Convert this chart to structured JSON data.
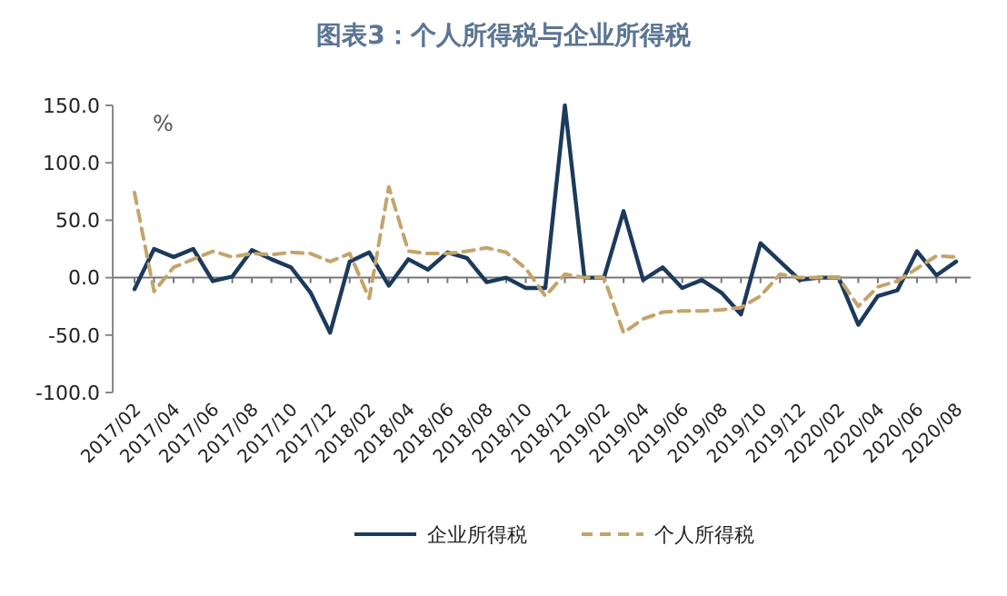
{
  "chart_data": {
    "type": "line",
    "title": "图表3：个人所得税与企业所得税",
    "ylabel": "%",
    "categories": [
      "2017/02",
      null,
      "2017/04",
      null,
      "2017/06",
      null,
      "2017/08",
      null,
      "2017/10",
      null,
      "2017/12",
      null,
      "2018/02",
      null,
      "2018/04",
      null,
      "2018/06",
      null,
      "2018/08",
      null,
      "2018/10",
      null,
      "2018/12",
      null,
      "2019/02",
      null,
      "2019/04",
      null,
      "2019/06",
      null,
      "2019/08",
      null,
      "2019/10",
      null,
      "2019/12",
      null,
      "2020/02",
      null,
      "2020/04",
      null,
      "2020/06",
      null,
      "2020/08"
    ],
    "series": [
      {
        "name": "企业所得税",
        "color": "#1b3a5c",
        "line_style": "solid",
        "values": [
          -10,
          25,
          18,
          25,
          -3,
          1,
          24,
          16,
          9,
          -13,
          -48,
          14,
          22,
          -7,
          16,
          7,
          22,
          17,
          -4,
          0,
          -9,
          -9,
          150,
          0,
          0,
          58,
          -2,
          9,
          -9,
          -2,
          -13,
          -32,
          30,
          14,
          -2,
          0,
          0,
          -41,
          -16,
          -11,
          23,
          2,
          14
        ]
      },
      {
        "name": "个人所得税",
        "color": "#c4a46b",
        "line_style": "dashed",
        "values": [
          74,
          -12,
          9,
          16,
          23,
          18,
          21,
          20,
          22,
          21,
          14,
          21,
          -18,
          79,
          23,
          21,
          21,
          23,
          26,
          22,
          8,
          -16,
          3,
          0,
          0,
          -48,
          -36,
          -30,
          -29,
          -29,
          -28,
          -26,
          -16,
          3,
          0,
          0,
          0,
          -25,
          -8,
          -3,
          8,
          19,
          18
        ]
      }
    ],
    "ylim": [
      -100,
      150
    ],
    "yticks": [
      {
        "value": -100,
        "label": "-100.0"
      },
      {
        "value": -50,
        "label": "-50.0"
      },
      {
        "value": 0,
        "label": "0.0"
      },
      {
        "value": 50,
        "label": "50.0"
      },
      {
        "value": 100,
        "label": "100.0"
      },
      {
        "value": 150,
        "label": "150.0"
      }
    ],
    "legend": "bottom",
    "marker": "none"
  }
}
